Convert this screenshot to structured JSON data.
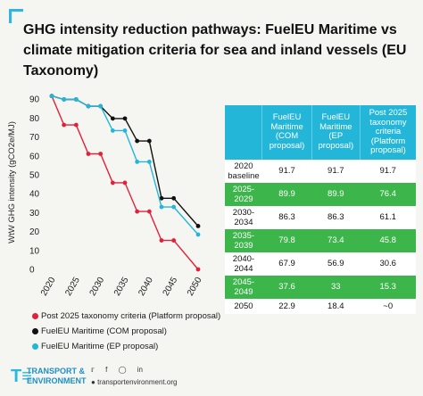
{
  "title": "GHG intensity reduction pathways: FuelEU Maritime vs climate mitigation criteria for sea and inland vessels (EU Taxonomy)",
  "chart_data": {
    "type": "line",
    "ylabel": "WtW GHG intensity (gCO2e/MJ)",
    "ylim": [
      0,
      90
    ],
    "yticks": [
      0,
      10,
      20,
      30,
      40,
      50,
      60,
      70,
      80,
      90
    ],
    "xlim": [
      2020,
      2050
    ],
    "xticks": [
      2020,
      2025,
      2030,
      2035,
      2040,
      2045,
      2050
    ],
    "series": [
      {
        "name": "Post 2025 taxonomy criteria (Platform proposal)",
        "color": "#e3203a",
        "points": [
          [
            2020,
            91.7
          ],
          [
            2022.5,
            76.4
          ],
          [
            2025,
            76.4
          ],
          [
            2027.5,
            61.1
          ],
          [
            2030,
            61.1
          ],
          [
            2032.5,
            45.8
          ],
          [
            2035,
            45.8
          ],
          [
            2037.5,
            30.6
          ],
          [
            2040,
            30.6
          ],
          [
            2042.5,
            15.3
          ],
          [
            2045,
            15.3
          ],
          [
            2050,
            0
          ]
        ]
      },
      {
        "name": "FuelEU Maritime (COM proposal)",
        "color": "#111111",
        "points": [
          [
            2020,
            91.7
          ],
          [
            2022.5,
            89.9
          ],
          [
            2025,
            89.9
          ],
          [
            2027.5,
            86.3
          ],
          [
            2030,
            86.3
          ],
          [
            2032.5,
            79.8
          ],
          [
            2035,
            79.8
          ],
          [
            2037.5,
            67.9
          ],
          [
            2040,
            67.9
          ],
          [
            2042.5,
            37.6
          ],
          [
            2045,
            37.6
          ],
          [
            2050,
            22.9
          ]
        ]
      },
      {
        "name": "FuelEU Maritime (EP proposal)",
        "color": "#23b6d9",
        "points": [
          [
            2020,
            91.7
          ],
          [
            2022.5,
            89.9
          ],
          [
            2025,
            89.9
          ],
          [
            2027.5,
            86.3
          ],
          [
            2030,
            86.3
          ],
          [
            2032.5,
            73.4
          ],
          [
            2035,
            73.4
          ],
          [
            2037.5,
            56.9
          ],
          [
            2040,
            56.9
          ],
          [
            2042.5,
            33
          ],
          [
            2045,
            33
          ],
          [
            2050,
            18.4
          ]
        ]
      }
    ]
  },
  "table": {
    "headers": [
      "",
      "FuelEU Maritime (COM proposal)",
      "FuelEU Maritime (EP proposal)",
      "Post 2025 taxonomy criteria (Platform proposal)"
    ],
    "rows": [
      {
        "period": "2020 baseline",
        "com": "91.7",
        "ep": "91.7",
        "tax": "91.7",
        "style": "baseline"
      },
      {
        "period": "2025-2029",
        "com": "89.9",
        "ep": "89.9",
        "tax": "76.4",
        "style": "green"
      },
      {
        "period": "2030-2034",
        "com": "86.3",
        "ep": "86.3",
        "tax": "61.1",
        "style": "light"
      },
      {
        "period": "2035-2039",
        "com": "79.8",
        "ep": "73.4",
        "tax": "45.8",
        "style": "green"
      },
      {
        "period": "2040-2044",
        "com": "67.9",
        "ep": "56.9",
        "tax": "30.6",
        "style": "light"
      },
      {
        "period": "2045-2049",
        "com": "37.6",
        "ep": "33",
        "tax": "15.3",
        "style": "green"
      },
      {
        "period": "2050",
        "com": "22.9",
        "ep": "18.4",
        "tax": "~0",
        "style": "light"
      }
    ]
  },
  "legend": [
    {
      "label": "Post 2025 taxonomy criteria (Platform proposal)",
      "color": "#e3203a"
    },
    {
      "label": "FuelEU Maritime (COM proposal)",
      "color": "#111111"
    },
    {
      "label": "FuelEU Maritime (EP proposal)",
      "color": "#23b6d9"
    }
  ],
  "footer": {
    "brand_line1": "TRANSPORT &",
    "brand_line2": "ENVIRONMENT",
    "website": "transportenvironment.org",
    "social_icons": [
      "twitter-icon",
      "facebook-icon",
      "instagram-icon",
      "linkedin-icon"
    ]
  }
}
